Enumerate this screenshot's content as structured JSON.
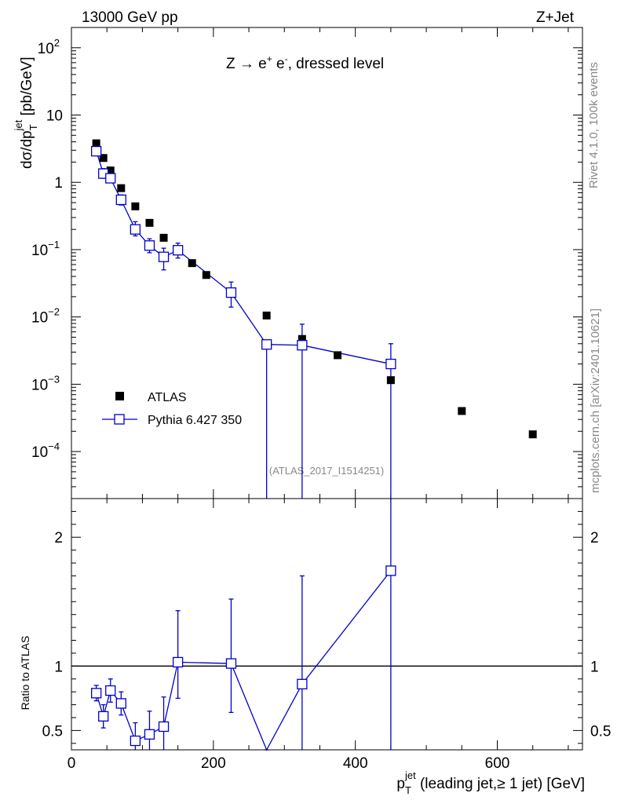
{
  "header": {
    "left": "13000 GeV pp",
    "right": "Z+Jet"
  },
  "process_label": {
    "pre": "Z → e",
    "plus": "+",
    "mid": " e",
    "minus": "-",
    "post": ", dressed level"
  },
  "side_labels": {
    "rivet": "Rivet 4.1.0,  100k events",
    "mcplots": "mcplots.cern.ch [arXiv:2401.10621]"
  },
  "analysis_tag": "(ATLAS_2017_I1514251)",
  "legend": {
    "data_label": "ATLAS",
    "mc_label": "Pythia 6.427 350"
  },
  "colors": {
    "data": "#000000",
    "mc": "#0000cc",
    "reference_line": "#000000"
  },
  "chart_data": [
    {
      "type": "scatter",
      "panel": "main",
      "ylabel": {
        "base": "dσ/dp",
        "sub": "T",
        "sup": "jet",
        "unit": " [pb/GeV]"
      },
      "yscale": "log",
      "ylim": [
        2e-05,
        200
      ],
      "xlim": [
        0,
        720
      ],
      "y_tick_labels": [
        {
          "v": 0.0001,
          "base": "10",
          "exp": "−4"
        },
        {
          "v": 0.001,
          "base": "10",
          "exp": "−3"
        },
        {
          "v": 0.01,
          "base": "10",
          "exp": "−2"
        },
        {
          "v": 0.1,
          "base": "10",
          "exp": "−1"
        },
        {
          "v": 1,
          "base": "1",
          "exp": ""
        },
        {
          "v": 10,
          "base": "10",
          "exp": ""
        },
        {
          "v": 100,
          "base": "10",
          "exp": "2"
        }
      ],
      "series": [
        {
          "name": "ATLAS",
          "style": "filled-square",
          "x": [
            35,
            45,
            55,
            70,
            90,
            110,
            130,
            150,
            170,
            190,
            225,
            275,
            325,
            375,
            450,
            550,
            650
          ],
          "y": [
            3.8,
            2.3,
            1.5,
            0.82,
            0.44,
            0.25,
            0.15,
            0.095,
            0.063,
            0.042,
            0.024,
            0.0105,
            0.0047,
            0.0027,
            0.00115,
            0.0004,
            0.00018
          ]
        },
        {
          "name": "Pythia 6.427 350",
          "style": "open-square-line",
          "x": [
            35,
            45,
            55,
            70,
            90,
            110,
            130,
            150,
            225,
            275,
            325,
            450
          ],
          "y": [
            2.9,
            1.35,
            1.15,
            0.55,
            0.2,
            0.115,
            0.078,
            0.098,
            0.023,
            0.0039,
            0.0038,
            0.002
          ],
          "y_err_up": [
            3.4,
            1.6,
            1.3,
            0.65,
            0.26,
            0.145,
            0.105,
            0.125,
            0.033,
            0.0039,
            0.0078,
            0.004
          ],
          "y_err_down": [
            2.5,
            1.15,
            1.0,
            0.46,
            0.16,
            0.09,
            0.05,
            0.075,
            0.014,
            1e-07,
            1e-07,
            1e-07
          ]
        }
      ]
    },
    {
      "type": "line",
      "panel": "ratio",
      "ylabel": "Ratio to ATLAS",
      "ylim": [
        0.35,
        2.3
      ],
      "xlim": [
        0,
        720
      ],
      "xlabel": {
        "base": "p",
        "sub": "T",
        "sup": "jet",
        "rest": " (leading jet,≥ 1 jet) [GeV]"
      },
      "x_ticks": [
        "0",
        "200",
        "400",
        "600"
      ],
      "x_tick_values": [
        0,
        200,
        400,
        600
      ],
      "y_ticks": [
        "0.5",
        "1",
        "2"
      ],
      "y_tick_values": [
        0.5,
        1,
        2
      ],
      "reference": 1,
      "series": [
        {
          "name": "Pythia 6.427 350",
          "x": [
            35,
            45,
            55,
            70,
            90,
            110,
            130,
            150,
            225,
            275,
            325,
            450
          ],
          "y": [
            0.79,
            0.61,
            0.81,
            0.71,
            0.42,
            0.47,
            0.53,
            1.03,
            1.02,
            0.33,
            0.86,
            1.74
          ],
          "y_err_up": [
            0.85,
            0.7,
            0.9,
            0.8,
            0.56,
            0.65,
            0.76,
            1.43,
            1.52,
            0.33,
            1.7,
            2.5
          ],
          "y_err_down": [
            0.73,
            0.52,
            0.72,
            0.62,
            0.3,
            0.3,
            0.3,
            0.75,
            0.64,
            0.33,
            0.3,
            0.3
          ]
        }
      ]
    }
  ]
}
